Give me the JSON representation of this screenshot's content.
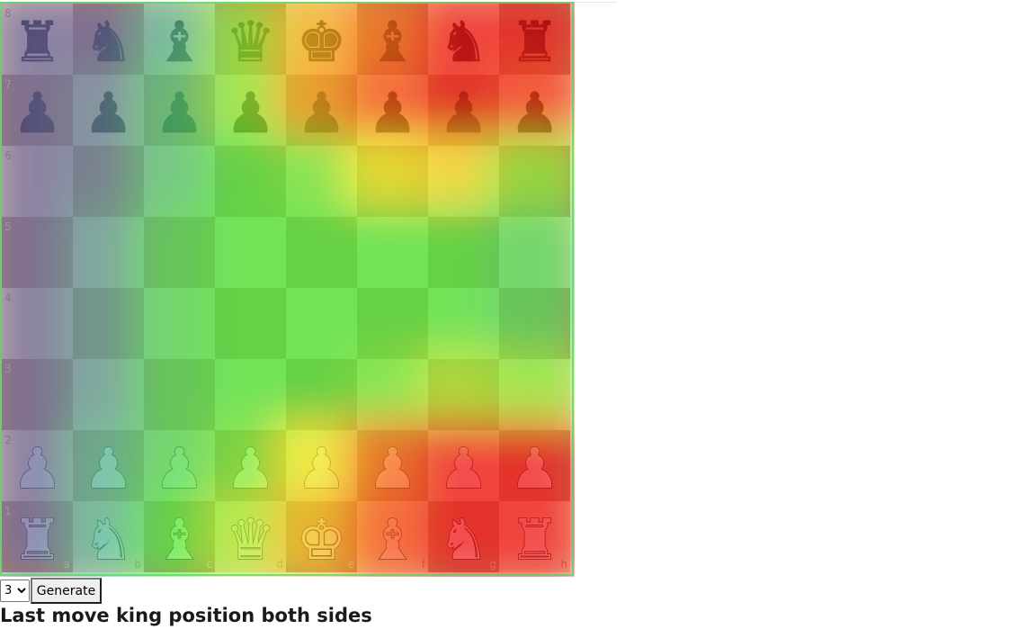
{
  "board": {
    "files": [
      "a",
      "b",
      "c",
      "d",
      "e",
      "f",
      "g",
      "h"
    ],
    "ranks": [
      "8",
      "7",
      "6",
      "5",
      "4",
      "3",
      "2",
      "1"
    ],
    "position": [
      [
        "bR",
        "bN",
        "bB",
        "bQ",
        "bK",
        "bB",
        "bN",
        "bR"
      ],
      [
        "bP",
        "bP",
        "bP",
        "bP",
        "bP",
        "bP",
        "bP",
        "bP"
      ],
      [
        "",
        "",
        "",
        "",
        "",
        "",
        "",
        ""
      ],
      [
        "",
        "",
        "",
        "",
        "",
        "",
        "",
        ""
      ],
      [
        "",
        "",
        "",
        "",
        "",
        "",
        "",
        ""
      ],
      [
        "",
        "",
        "",
        "",
        "",
        "",
        "",
        ""
      ],
      [
        "wP",
        "wP",
        "wP",
        "wP",
        "wP",
        "wP",
        "wP",
        "wP"
      ],
      [
        "wR",
        "wN",
        "wB",
        "wQ",
        "wK",
        "wB",
        "wN",
        "wR"
      ]
    ],
    "colors": {
      "light": "#f0d9b5",
      "dark": "#b58863"
    }
  },
  "heatmap": {
    "description_source": "overlay",
    "intensity": [
      [
        0.05,
        0.05,
        0.2,
        0.45,
        0.72,
        0.85,
        1.0,
        1.0
      ],
      [
        0.05,
        0.1,
        0.25,
        0.45,
        0.75,
        0.9,
        1.0,
        0.95
      ],
      [
        0.05,
        0.1,
        0.25,
        0.35,
        0.4,
        0.6,
        0.65,
        0.45
      ],
      [
        0.05,
        0.15,
        0.3,
        0.35,
        0.35,
        0.35,
        0.35,
        0.3
      ],
      [
        0.05,
        0.15,
        0.3,
        0.35,
        0.35,
        0.35,
        0.35,
        0.3
      ],
      [
        0.05,
        0.15,
        0.3,
        0.35,
        0.35,
        0.4,
        0.5,
        0.45
      ],
      [
        0.05,
        0.2,
        0.3,
        0.4,
        0.6,
        0.85,
        1.0,
        1.0
      ],
      [
        0.05,
        0.2,
        0.35,
        0.5,
        0.7,
        0.9,
        1.0,
        1.0
      ]
    ]
  },
  "controls": {
    "depth_selected": "3",
    "depth_options": [
      "3"
    ],
    "generate_label": "Generate"
  },
  "caption": "Last move king position both sides"
}
